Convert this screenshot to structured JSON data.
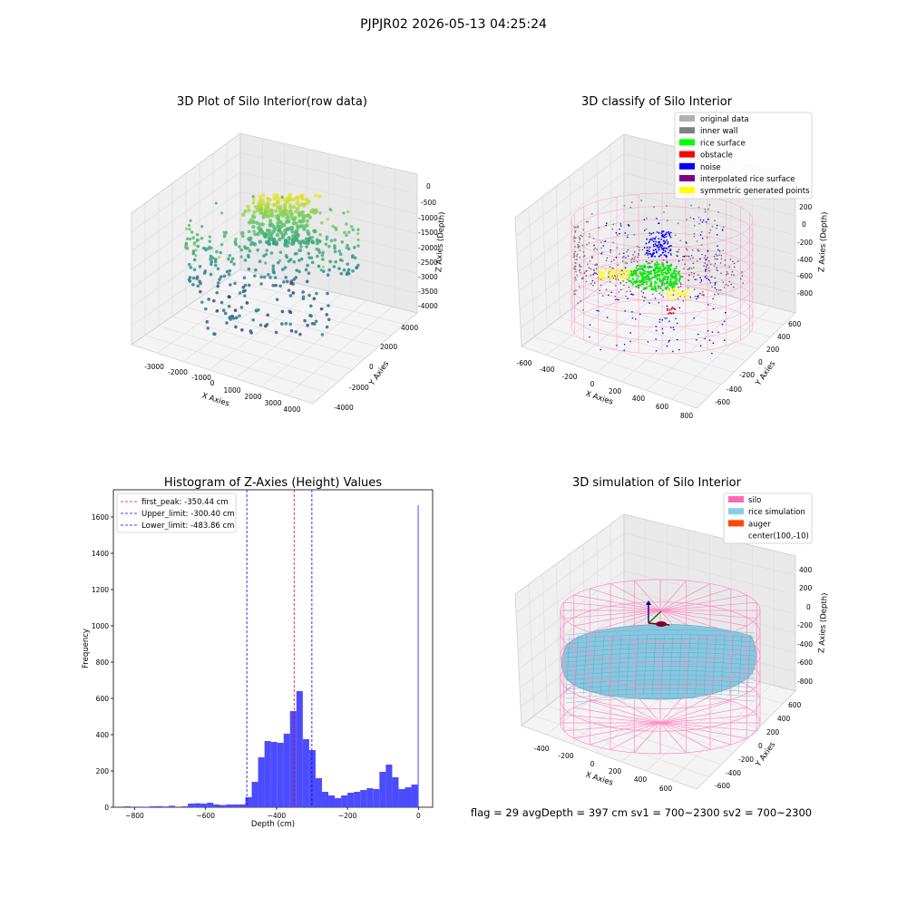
{
  "suptitle": "PJPJR02 2026-05-13 04:25:24",
  "footer": "flag = 29  avgDepth = 397 cm  sv1 = 700~2300  sv2 = 700~2300",
  "panels": {
    "raw": {
      "title": "3D Plot of Silo Interior(row data)",
      "xlabel": "X Axies",
      "ylabel": "Y Axies",
      "zlabel": "Z Axies (Depth)",
      "xticks": [
        "-3000",
        "-2000",
        "-1000",
        "0",
        "1000",
        "2000",
        "3000",
        "4000"
      ],
      "yticks": [
        "-4000",
        "-2000",
        "0",
        "2000",
        "4000"
      ],
      "zticks": [
        "0",
        "-500",
        "-1000",
        "-1500",
        "-2000",
        "-2500",
        "-3000",
        "-3500",
        "-4000"
      ]
    },
    "classify": {
      "title": "3D classify of Silo Interior",
      "xlabel": "X Axies",
      "ylabel": "Y Axies",
      "zlabel": "Z Axies (Depth)",
      "xticks": [
        "-600",
        "-400",
        "-200",
        "0",
        "200",
        "400",
        "600",
        "800"
      ],
      "yticks": [
        "-600",
        "-400",
        "-200",
        "0",
        "200",
        "400",
        "600"
      ],
      "zticks": [
        "200",
        "0",
        "-200",
        "-400",
        "-600",
        "-800"
      ],
      "legend": [
        {
          "label": "original data",
          "color": "#b0b0b0"
        },
        {
          "label": "inner wall",
          "color": "#808080"
        },
        {
          "label": "rice surface",
          "color": "#00ff00"
        },
        {
          "label": "obstacle",
          "color": "#ff0000"
        },
        {
          "label": "noise",
          "color": "#0000ff"
        },
        {
          "label": "interpolated rice surface",
          "color": "#800080"
        },
        {
          "label": "symmetric generated points",
          "color": "#ffff00"
        }
      ]
    },
    "simulation": {
      "title": "3D simulation of Silo Interior",
      "xlabel": "X Axies",
      "ylabel": "Y Axies",
      "zlabel": "Z Axies (Depth)",
      "xticks": [
        "-400",
        "-200",
        "0",
        "200",
        "400",
        "600"
      ],
      "yticks": [
        "-600",
        "-400",
        "-200",
        "0",
        "200",
        "400",
        "600"
      ],
      "zticks": [
        "400",
        "200",
        "0",
        "-200",
        "-400",
        "-600",
        "-800"
      ],
      "legend": [
        {
          "label": "silo",
          "color": "#ff69b4"
        },
        {
          "label": "rice simulation",
          "color": "#87ceeb"
        },
        {
          "label": "auger",
          "color": "#ff4500"
        },
        {
          "label": "center(100,-10)",
          "color": ""
        }
      ]
    }
  },
  "chart_data": {
    "type": "bar",
    "title": "Histogram of Z-Axies (Height) Values",
    "xlabel": "Depth (cm)",
    "ylabel": "Frequency",
    "xlim": [
      -860,
      40
    ],
    "ylim": [
      0,
      1750
    ],
    "xticks": [
      -800,
      -600,
      -400,
      -200,
      0
    ],
    "yticks": [
      0,
      200,
      400,
      600,
      800,
      1000,
      1200,
      1400,
      1600
    ],
    "bar_color": "#4b4bff",
    "bins": [
      {
        "x0": -830,
        "x1": -812,
        "value": 5
      },
      {
        "x0": -812,
        "x1": -794,
        "value": 3
      },
      {
        "x0": -776,
        "x1": -758,
        "value": 2
      },
      {
        "x0": -758,
        "x1": -740,
        "value": 5
      },
      {
        "x0": -740,
        "x1": -722,
        "value": 6
      },
      {
        "x0": -722,
        "x1": -704,
        "value": 4
      },
      {
        "x0": -704,
        "x1": -686,
        "value": 8
      },
      {
        "x0": -668,
        "x1": -650,
        "value": 5
      },
      {
        "x0": -650,
        "x1": -632,
        "value": 20
      },
      {
        "x0": -632,
        "x1": -614,
        "value": 22
      },
      {
        "x0": -614,
        "x1": -596,
        "value": 20
      },
      {
        "x0": -596,
        "x1": -578,
        "value": 25
      },
      {
        "x0": -578,
        "x1": -560,
        "value": 15
      },
      {
        "x0": -560,
        "x1": -542,
        "value": 12
      },
      {
        "x0": -542,
        "x1": -524,
        "value": 15
      },
      {
        "x0": -524,
        "x1": -506,
        "value": 15
      },
      {
        "x0": -506,
        "x1": -488,
        "value": 15
      },
      {
        "x0": -488,
        "x1": -470,
        "value": 55
      },
      {
        "x0": -470,
        "x1": -452,
        "value": 140
      },
      {
        "x0": -452,
        "x1": -434,
        "value": 275
      },
      {
        "x0": -434,
        "x1": -416,
        "value": 365
      },
      {
        "x0": -416,
        "x1": -398,
        "value": 360
      },
      {
        "x0": -398,
        "x1": -380,
        "value": 355
      },
      {
        "x0": -380,
        "x1": -362,
        "value": 405
      },
      {
        "x0": -362,
        "x1": -344,
        "value": 530
      },
      {
        "x0": -344,
        "x1": -326,
        "value": 640
      },
      {
        "x0": -326,
        "x1": -308,
        "value": 375
      },
      {
        "x0": -308,
        "x1": -290,
        "value": 315
      },
      {
        "x0": -290,
        "x1": -272,
        "value": 160
      },
      {
        "x0": -272,
        "x1": -254,
        "value": 85
      },
      {
        "x0": -254,
        "x1": -236,
        "value": 65
      },
      {
        "x0": -236,
        "x1": -218,
        "value": 50
      },
      {
        "x0": -218,
        "x1": -200,
        "value": 65
      },
      {
        "x0": -200,
        "x1": -182,
        "value": 80
      },
      {
        "x0": -182,
        "x1": -164,
        "value": 85
      },
      {
        "x0": -164,
        "x1": -146,
        "value": 95
      },
      {
        "x0": -146,
        "x1": -128,
        "value": 105
      },
      {
        "x0": -128,
        "x1": -110,
        "value": 100
      },
      {
        "x0": -110,
        "x1": -92,
        "value": 195
      },
      {
        "x0": -92,
        "x1": -74,
        "value": 235
      },
      {
        "x0": -74,
        "x1": -56,
        "value": 165
      },
      {
        "x0": -56,
        "x1": -38,
        "value": 100
      },
      {
        "x0": -38,
        "x1": -20,
        "value": 110
      },
      {
        "x0": -20,
        "x1": -2,
        "value": 125
      },
      {
        "x0": -2,
        "x1": 0,
        "value": 1665
      }
    ],
    "vlines": [
      {
        "label": "first_peak: -350.44 cm",
        "x": -350.44,
        "color": "#ff0000"
      },
      {
        "label": "Upper_limit: -300.40 cm",
        "x": -300.4,
        "color": "#0000ff"
      },
      {
        "label": "Lower_limit: -483.86 cm",
        "x": -483.86,
        "color": "#0000ff"
      }
    ]
  }
}
